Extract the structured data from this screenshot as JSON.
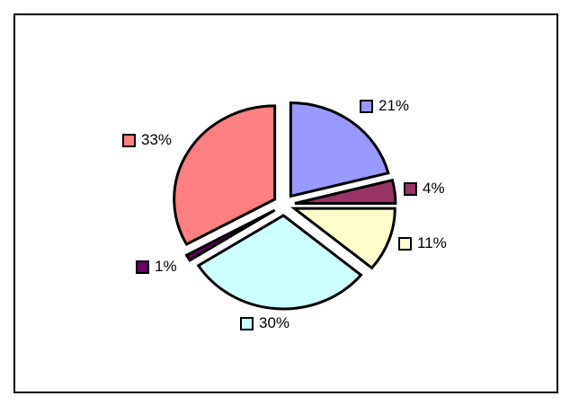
{
  "chart_data": {
    "type": "pie",
    "exploded": true,
    "start": "top, clockwise",
    "legend": "none",
    "slices": [
      {
        "value": 21,
        "label": "21%",
        "color": "#9999FF"
      },
      {
        "value": 4,
        "label": "4%",
        "color": "#993366"
      },
      {
        "value": 11,
        "label": "11%",
        "color": "#FFFFCC"
      },
      {
        "value": 30,
        "label": "30%",
        "color": "#CCFFFF"
      },
      {
        "value": 1,
        "label": "1%",
        "color": "#660066"
      },
      {
        "value": 33,
        "label": "33%",
        "color": "#FF8080"
      }
    ]
  }
}
